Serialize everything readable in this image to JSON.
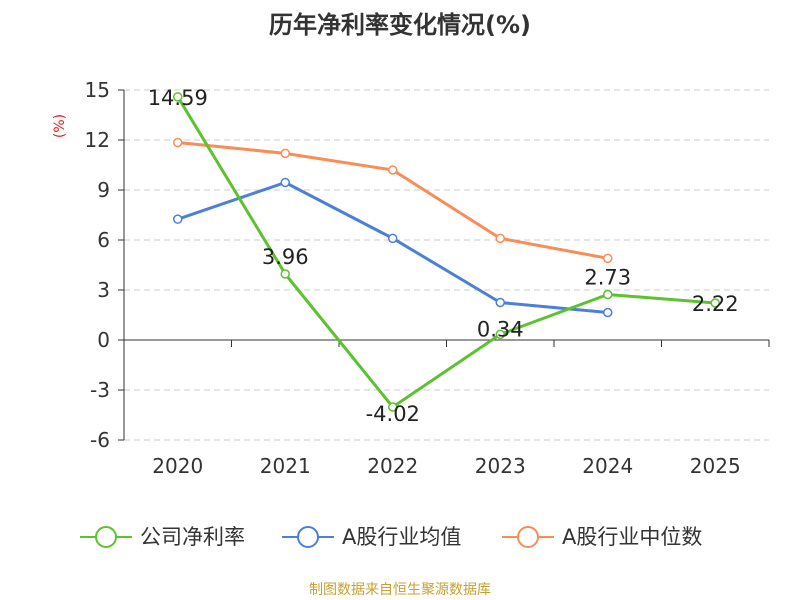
{
  "chart_data": {
    "type": "line",
    "title": "历年净利率变化情况(%)",
    "ylabel": "(%)",
    "xlabel": "",
    "categories": [
      "2020",
      "2021",
      "2022",
      "2023",
      "2024",
      "2025"
    ],
    "ylim": [
      -6,
      15
    ],
    "yticks": [
      15,
      12,
      9,
      6,
      3,
      0,
      -3,
      -6
    ],
    "grid": true,
    "legend_position": "bottom",
    "series": [
      {
        "name": "公司净利率",
        "color": "#5cc22e",
        "values": [
          14.59,
          3.96,
          -4.02,
          0.34,
          2.73,
          2.22
        ],
        "labels": [
          "14.59",
          "3.96",
          "-4.02",
          "0.34",
          "2.73",
          "2.22"
        ]
      },
      {
        "name": "A股行业均值",
        "color": "#4b7fd9",
        "values": [
          7.25,
          9.45,
          6.1,
          2.25,
          1.65,
          null
        ]
      },
      {
        "name": "A股行业中位数",
        "color": "#f98c57",
        "values": [
          11.85,
          11.2,
          10.2,
          6.1,
          4.9,
          null
        ]
      }
    ],
    "source": "制图数据来自恒生聚源数据库"
  }
}
